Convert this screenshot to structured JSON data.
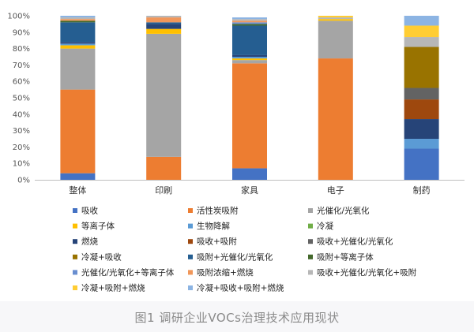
{
  "caption": "图1 调研企业VOCs治理技术应用现状",
  "chart_data": {
    "type": "bar",
    "stacked": true,
    "categories": [
      "整体",
      "印刷",
      "家具",
      "电子",
      "制药"
    ],
    "ylim": [
      0,
      100
    ],
    "yticks": [
      "0%",
      "10%",
      "20%",
      "30%",
      "40%",
      "50%",
      "60%",
      "70%",
      "80%",
      "90%",
      "100%"
    ],
    "legend_position": "bottom",
    "series": [
      {
        "name": "吸收",
        "color": "#4472c4",
        "values": [
          4,
          0,
          7,
          0,
          19
        ]
      },
      {
        "name": "活性炭吸附",
        "color": "#ed7d31",
        "values": [
          51,
          14,
          64,
          74,
          0
        ]
      },
      {
        "name": "光催化/光氧化",
        "color": "#a5a5a5",
        "values": [
          25,
          75,
          2,
          23,
          0
        ]
      },
      {
        "name": "等离子体",
        "color": "#ffc000",
        "values": [
          2,
          3,
          1,
          1,
          0
        ]
      },
      {
        "name": "生物降解",
        "color": "#5b9bd5",
        "values": [
          1,
          0,
          1,
          0,
          6
        ]
      },
      {
        "name": "冷凝",
        "color": "#70ad47",
        "values": [
          0,
          0,
          0,
          0,
          0
        ]
      },
      {
        "name": "燃烧",
        "color": "#264478",
        "values": [
          1,
          3,
          1,
          0,
          12
        ]
      },
      {
        "name": "吸收+吸附",
        "color": "#9e480e",
        "values": [
          0,
          0,
          0,
          0,
          12
        ]
      },
      {
        "name": "吸收+光催化/光氧化",
        "color": "#636363",
        "values": [
          0,
          0,
          0,
          0,
          7
        ]
      },
      {
        "name": "冷凝+吸收",
        "color": "#997300",
        "values": [
          0,
          0,
          0,
          0,
          25
        ]
      },
      {
        "name": "吸附+光催化/光氧化",
        "color": "#255e91",
        "values": [
          12,
          1,
          18,
          0,
          0
        ]
      },
      {
        "name": "吸附+等离子体",
        "color": "#43682b",
        "values": [
          1,
          0,
          1,
          0,
          0
        ]
      },
      {
        "name": "光催化/光氧化+等离子体",
        "color": "#698ed0",
        "values": [
          0,
          0,
          1,
          0,
          0
        ]
      },
      {
        "name": "吸附浓缩+燃烧",
        "color": "#f1975a",
        "values": [
          1,
          3,
          1,
          0,
          0
        ]
      },
      {
        "name": "吸收+光催化/光氧化+吸附",
        "color": "#b7b7b7",
        "values": [
          1,
          1,
          1,
          1,
          6
        ]
      },
      {
        "name": "冷凝+吸附+燃烧",
        "color": "#ffcd33",
        "values": [
          0,
          0,
          0,
          1,
          7
        ]
      },
      {
        "name": "冷凝+吸收+吸附+燃烧",
        "color": "#8cb4e3",
        "values": [
          1,
          0,
          1,
          0,
          6
        ]
      }
    ]
  }
}
